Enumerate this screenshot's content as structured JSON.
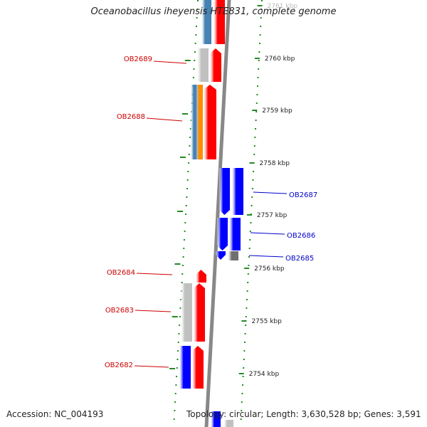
{
  "title": "Oceanobacillus iheyensis HTE831, complete genome",
  "footer": {
    "accession": "Accession: NC_004193",
    "topology": "Topology: circular; Length: 3,630,528 bp; Genes: 3,591"
  },
  "colors": {
    "forward_cds": "#ff0000",
    "reverse_cds": "#0000ff",
    "steel": "#4682b4",
    "orange": "#ff8c00",
    "light_gray": "#c0c0c0",
    "dark_gray": "#707070",
    "backbone": "#888888",
    "tick_green": "#228b22",
    "label_forward": "#cc0000",
    "label_reverse": "#0000cc"
  },
  "scale": {
    "ticks": [
      "2761 kbp",
      "2760 kbp",
      "2759 kbp",
      "2758 kbp",
      "2757 kbp",
      "2756 kbp",
      "2755 kbp",
      "2754 kbp"
    ]
  },
  "genes": [
    {
      "name": "OB2689",
      "strand": "forward"
    },
    {
      "name": "OB2688",
      "strand": "forward"
    },
    {
      "name": "OB2687",
      "strand": "reverse"
    },
    {
      "name": "OB2686",
      "strand": "reverse"
    },
    {
      "name": "OB2685",
      "strand": "reverse"
    },
    {
      "name": "OB2684",
      "strand": "forward"
    },
    {
      "name": "OB2683",
      "strand": "forward"
    },
    {
      "name": "OB2682",
      "strand": "forward"
    }
  ]
}
